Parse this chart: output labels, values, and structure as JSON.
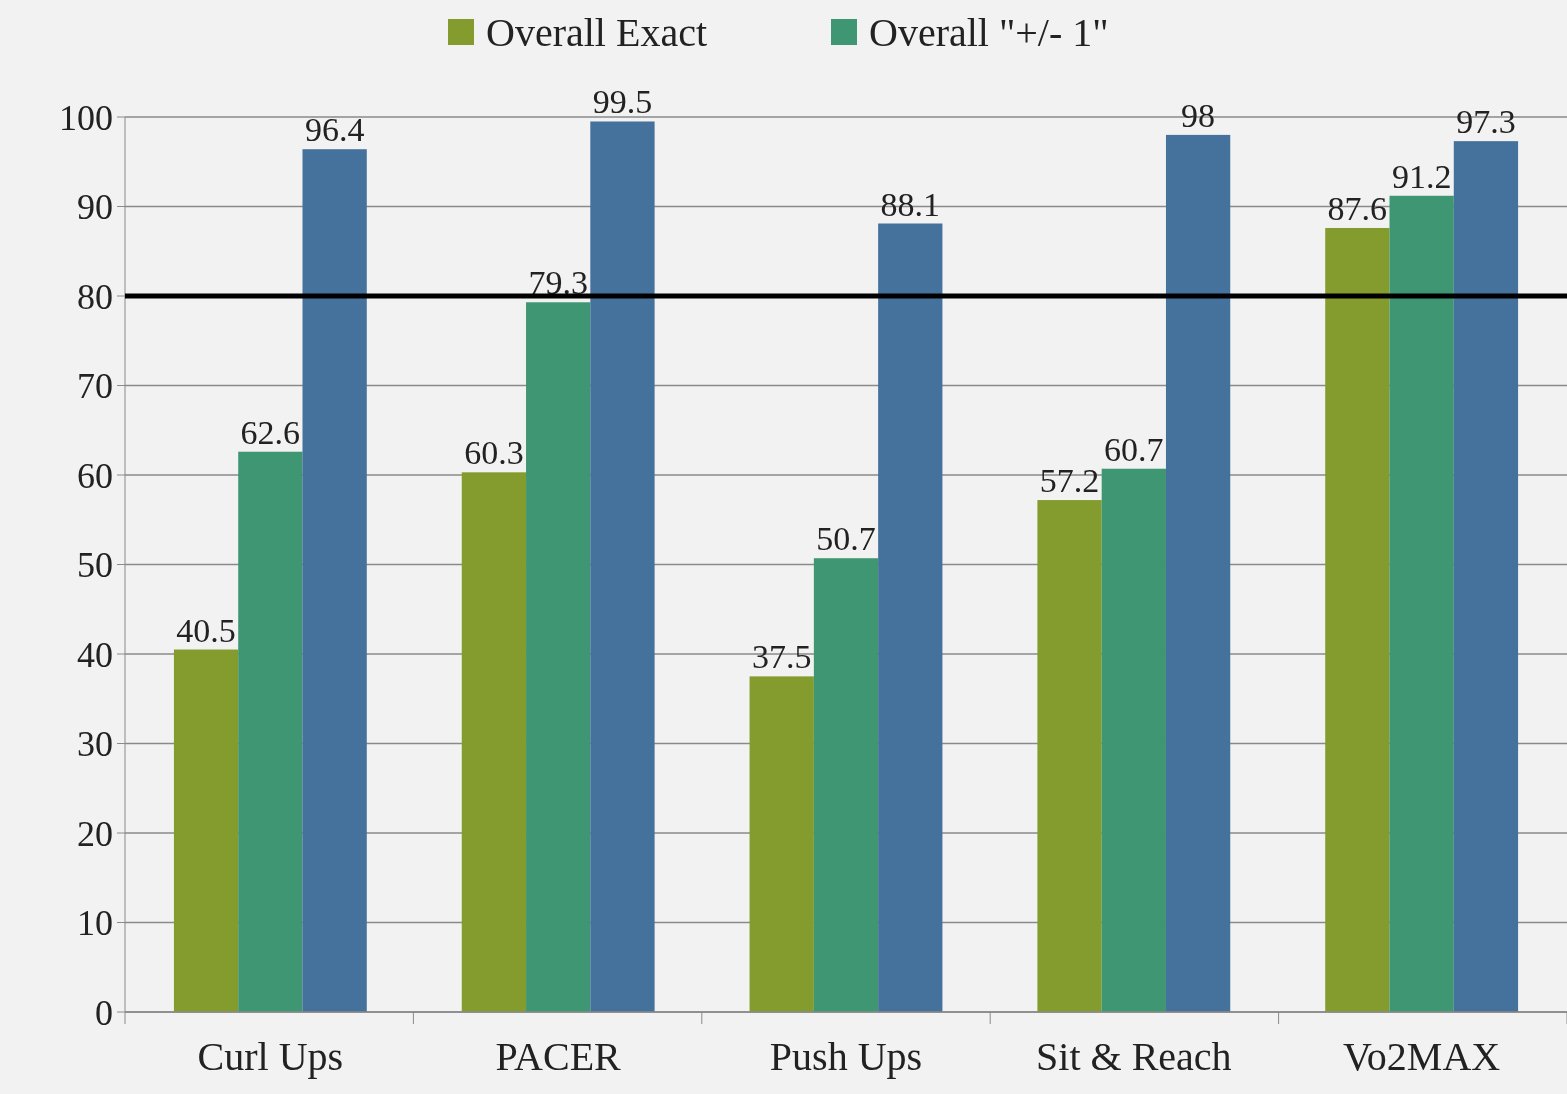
{
  "chart_data": {
    "type": "bar",
    "categories": [
      "Curl Ups",
      "PACER",
      "Push Ups",
      "Sit & Reach",
      "Vo2MAX"
    ],
    "series": [
      {
        "name": "Overall Exact",
        "color": "#849b2e",
        "values": [
          40.5,
          60.3,
          37.5,
          57.2,
          87.6
        ]
      },
      {
        "name": "Overall \"+/- 1\"",
        "color": "#3e9672",
        "values": [
          62.6,
          79.3,
          50.7,
          60.7,
          91.2
        ]
      },
      {
        "color": "#45719d",
        "values": [
          96.4,
          99.5,
          88.1,
          98,
          97.3
        ]
      }
    ],
    "ylim": [
      0,
      100
    ],
    "yticks": [
      0,
      10,
      20,
      30,
      40,
      50,
      60,
      70,
      80,
      90,
      100
    ],
    "grid": "y",
    "legend": "top",
    "data_labels": true,
    "ref_lines": [
      {
        "axis": "y",
        "value": 80,
        "color": "#000000"
      }
    ]
  }
}
